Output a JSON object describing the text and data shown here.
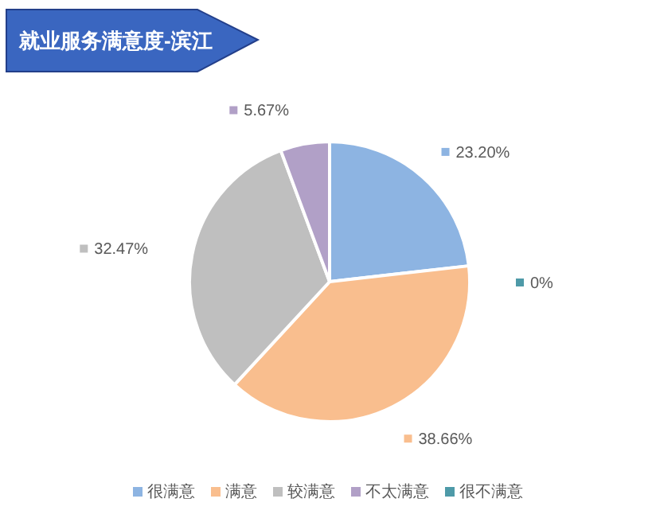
{
  "chart_data": {
    "type": "pie",
    "title": "就业服务满意度-滨江",
    "categories": [
      "很满意",
      "满意",
      "较满意",
      "不太满意",
      "很不满意"
    ],
    "values": [
      23.2,
      38.66,
      32.47,
      5.67,
      0
    ],
    "value_labels": [
      "23.20%",
      "38.66%",
      "32.47%",
      "5.67%",
      "0%"
    ],
    "colors": [
      "#8db4e2",
      "#f9be8e",
      "#bfbfbf",
      "#b1a0c7",
      "#4e9aa8"
    ],
    "legend": "bottom"
  }
}
